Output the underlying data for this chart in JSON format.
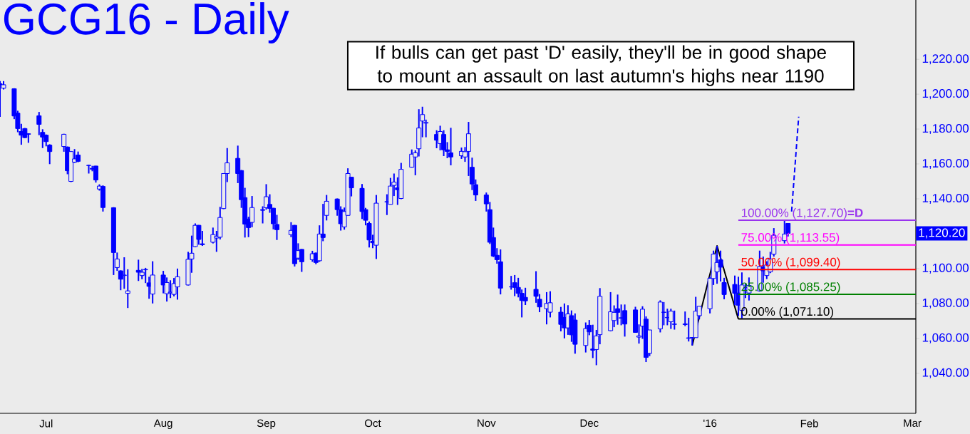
{
  "chart_data": {
    "type": "candlestick",
    "title": "GCG16 - Daily",
    "color": "#0000ff",
    "x": [
      "2015-06-18",
      "2015-06-19",
      "2015-06-22",
      "2015-06-23",
      "2015-06-24",
      "2015-06-25",
      "2015-06-26",
      "2015-06-29",
      "2015-06-30",
      "2015-07-01",
      "2015-07-02",
      "2015-07-06",
      "2015-07-07",
      "2015-07-08",
      "2015-07-09",
      "2015-07-10",
      "2015-07-13",
      "2015-07-14",
      "2015-07-15",
      "2015-07-16",
      "2015-07-17",
      "2015-07-20",
      "2015-07-21",
      "2015-07-22",
      "2015-07-23",
      "2015-07-24",
      "2015-07-27",
      "2015-07-28",
      "2015-07-29",
      "2015-07-30",
      "2015-07-31",
      "2015-08-03",
      "2015-08-04",
      "2015-08-05",
      "2015-08-06",
      "2015-08-07",
      "2015-08-10",
      "2015-08-11",
      "2015-08-12",
      "2015-08-13",
      "2015-08-14",
      "2015-08-17",
      "2015-08-18",
      "2015-08-19",
      "2015-08-20",
      "2015-08-21",
      "2015-08-24",
      "2015-08-25",
      "2015-08-26",
      "2015-08-27",
      "2015-08-28",
      "2015-08-31",
      "2015-09-01",
      "2015-09-02",
      "2015-09-03",
      "2015-09-04",
      "2015-09-08",
      "2015-09-09",
      "2015-09-10",
      "2015-09-11",
      "2015-09-14",
      "2015-09-15",
      "2015-09-16",
      "2015-09-17",
      "2015-09-18",
      "2015-09-21",
      "2015-09-22",
      "2015-09-23",
      "2015-09-24",
      "2015-09-25",
      "2015-09-28",
      "2015-09-29",
      "2015-09-30",
      "2015-10-01",
      "2015-10-02",
      "2015-10-05",
      "2015-10-06",
      "2015-10-07",
      "2015-10-08",
      "2015-10-09",
      "2015-10-12",
      "2015-10-13",
      "2015-10-14",
      "2015-10-15",
      "2015-10-16",
      "2015-10-19",
      "2015-10-20",
      "2015-10-21",
      "2015-10-22",
      "2015-10-23",
      "2015-10-26",
      "2015-10-27",
      "2015-10-28",
      "2015-10-29",
      "2015-10-30",
      "2015-11-02",
      "2015-11-03",
      "2015-11-04",
      "2015-11-05",
      "2015-11-06",
      "2015-11-09",
      "2015-11-10",
      "2015-11-11",
      "2015-11-12",
      "2015-11-13",
      "2015-11-16",
      "2015-11-17",
      "2015-11-19",
      "2015-11-20",
      "2015-11-23",
      "2015-11-24",
      "2015-11-25",
      "2015-11-26",
      "2015-11-27",
      "2015-11-30",
      "2015-12-01",
      "2015-12-02",
      "2015-12-03",
      "2015-12-04",
      "2015-12-07",
      "2015-12-08",
      "2015-12-09",
      "2015-12-10",
      "2015-12-11",
      "2015-12-14",
      "2015-12-15",
      "2015-12-16",
      "2015-12-17",
      "2015-12-18",
      "2015-12-21",
      "2015-12-22",
      "2015-12-23",
      "2015-12-24",
      "2015-12-25",
      "2015-12-28",
      "2015-12-29",
      "2015-12-30",
      "2015-12-31",
      "2016-01-01",
      "2016-01-04",
      "2016-01-05",
      "2016-01-06",
      "2016-01-07",
      "2016-01-08",
      "2016-01-11",
      "2016-01-12",
      "2016-01-13",
      "2016-01-14",
      "2016-01-15",
      "2016-01-18",
      "2016-01-19",
      "2016-01-20",
      "2016-01-21",
      "2016-01-22",
      "2016-01-25",
      "2016-01-26"
    ],
    "ohlc": [
      [
        1206,
        1207.5,
        1187,
        1205.4
      ],
      [
        1203.4,
        1207.5,
        1202.7,
        1205.4
      ],
      [
        1203.1,
        1203.4,
        1185.7,
        1187.5
      ],
      [
        1189.1,
        1190.5,
        1178.2,
        1180.3
      ],
      [
        1178.6,
        1183,
        1171,
        1176.5
      ],
      [
        1180.3,
        1180.6,
        1174.8,
        1175.1
      ],
      [
        1177.3,
        1177.6,
        1172.1,
        1177
      ],
      [
        1187.6,
        1189.8,
        1176.5,
        1182.7
      ],
      [
        1178.1,
        1179.9,
        1169.1,
        1175.4
      ],
      [
        1176.5,
        1176.9,
        1170.1,
        1172.8
      ],
      [
        1170.8,
        1171.3,
        1159.9,
        1167.1
      ],
      [
        1170,
        1177.3,
        1167,
        1177
      ],
      [
        1169.7,
        1170,
        1154.1,
        1156.1
      ],
      [
        1150,
        1167.4,
        1149.6,
        1167.1
      ],
      [
        1161,
        1168.5,
        1160.6,
        1162.9
      ],
      [
        1165.1,
        1167.1,
        1161,
        1161.5
      ],
      [
        1159.1,
        1159.5,
        1154.5,
        1159.2
      ],
      [
        1157.5,
        1158.9,
        1155.8,
        1157
      ],
      [
        1158.8,
        1158.9,
        1149.3,
        1150.8
      ],
      [
        1145.6,
        1148.3,
        1144.7,
        1147.3
      ],
      [
        1147.1,
        1147.7,
        1132.7,
        1135
      ],
      [
        1134.9,
        1135.2,
        1096.3,
        1109.2
      ],
      [
        1100.6,
        1109.2,
        1098.7,
        1105.5
      ],
      [
        1098.7,
        1099,
        1087.6,
        1093.9
      ],
      [
        1096,
        1106.5,
        1088.4,
        1096.3
      ],
      [
        1085.8,
        1099.6,
        1077.4,
        1087.2
      ],
      [
        1099,
        1105.1,
        1092.9,
        1097.9
      ],
      [
        1096,
        1099.8,
        1093.9,
        1097.9
      ],
      [
        1099.3,
        1100.4,
        1091.7,
        1099.5
      ],
      [
        1091.8,
        1095.3,
        1082.7,
        1089.8
      ],
      [
        1085.4,
        1104.2,
        1080,
        1096.3
      ],
      [
        1096.3,
        1098.7,
        1085.8,
        1090.6
      ],
      [
        1085.6,
        1094.9,
        1081.1,
        1092
      ],
      [
        1086.1,
        1093.3,
        1083.1,
        1086.5
      ],
      [
        1085.2,
        1094.6,
        1084.1,
        1091.4
      ],
      [
        1089.5,
        1100,
        1082.2,
        1095.3
      ],
      [
        1090.6,
        1109.6,
        1090.3,
        1105.3
      ],
      [
        1105.5,
        1118.9,
        1097.6,
        1108.8
      ],
      [
        1112.6,
        1125.9,
        1112.3,
        1124.8
      ],
      [
        1124.8,
        1125,
        1113.7,
        1116.7
      ],
      [
        1114.2,
        1121.6,
        1113,
        1113.7
      ],
      [
        1115.1,
        1123.5,
        1114.4,
        1119.5
      ],
      [
        1117.5,
        1121.6,
        1109.6,
        1118.5
      ],
      [
        1118,
        1135.4,
        1116.7,
        1129.3
      ],
      [
        1134.4,
        1154.7,
        1134.1,
        1154.5
      ],
      [
        1154.5,
        1169.1,
        1149.6,
        1160.6
      ],
      [
        1163.2,
        1170.5,
        1149,
        1154.5
      ],
      [
        1156.2,
        1156.5,
        1134.8,
        1139.5
      ],
      [
        1140.7,
        1146.3,
        1117.8,
        1125.5
      ],
      [
        1128.4,
        1129.7,
        1118,
        1123.5
      ],
      [
        1126.5,
        1141.6,
        1123.7,
        1135
      ],
      [
        1133.8,
        1135.7,
        1125.9,
        1133.4
      ],
      [
        1134.9,
        1148.4,
        1133.8,
        1141.2
      ],
      [
        1136.8,
        1142.6,
        1132,
        1134.5
      ],
      [
        1134.6,
        1134.8,
        1122.5,
        1125.7
      ],
      [
        1125.3,
        1130.8,
        1116.4,
        1122.3
      ],
      [
        1119.4,
        1126.6,
        1118,
        1121.9
      ],
      [
        1124.8,
        1125,
        1101.2,
        1102.8
      ],
      [
        1106,
        1114.5,
        1105,
        1110.3
      ],
      [
        1111,
        1111.2,
        1098.1,
        1103.9
      ],
      [
        1105.1,
        1110.2,
        1103.9,
        1108.5
      ],
      [
        1108.9,
        1109.2,
        1102.5,
        1103.5
      ],
      [
        1104.5,
        1124.8,
        1103.9,
        1119.8
      ],
      [
        1119.8,
        1137.1,
        1115.7,
        1117.8
      ],
      [
        1130.5,
        1142.2,
        1127.6,
        1138.6
      ],
      [
        1139.9,
        1140.2,
        1130.3,
        1133.8
      ],
      [
        1133.8,
        1135.7,
        1121.8,
        1125.7
      ],
      [
        1123.9,
        1135,
        1122.3,
        1132.7
      ],
      [
        1130.5,
        1157.5,
        1130.3,
        1154.5
      ],
      [
        1152.4,
        1152.4,
        1141.4,
        1146.3
      ],
      [
        1146,
        1148.5,
        1128.4,
        1132.7
      ],
      [
        1133.8,
        1134.8,
        1124.8,
        1127.7
      ],
      [
        1125.9,
        1127,
        1112.1,
        1116.4
      ],
      [
        1115.7,
        1119.4,
        1111.7,
        1114.8
      ],
      [
        1113.4,
        1142.2,
        1105.5,
        1137.5
      ],
      [
        1138.2,
        1142.6,
        1130.7,
        1138.4
      ],
      [
        1136.8,
        1152,
        1136.8,
        1147.3
      ],
      [
        1147.7,
        1154.5,
        1141.6,
        1149.6
      ],
      [
        1146.3,
        1152.3,
        1136.5,
        1145.2
      ],
      [
        1140.2,
        1160.6,
        1139.8,
        1156.9
      ],
      [
        1158.1,
        1168.3,
        1157.9,
        1165.6
      ],
      [
        1164,
        1167.8,
        1153.5,
        1166.4
      ],
      [
        1168.7,
        1191.4,
        1164.3,
        1180.6
      ],
      [
        1184.6,
        1192.8,
        1175.3,
        1188.3
      ],
      [
        1183.4,
        1185.4,
        1175.3,
        1183.8
      ],
      [
        1176.9,
        1179.3,
        1169,
        1173.6
      ],
      [
        1171.7,
        1181.9,
        1167.8,
        1178.6
      ],
      [
        1176.9,
        1179.3,
        1164.5,
        1168.1
      ],
      [
        1168.1,
        1172.5,
        1163.3,
        1167.2
      ],
      [
        1166.4,
        1180.7,
        1159.2,
        1164
      ],
      [
        1164.7,
        1169.4,
        1162.9,
        1167.2
      ],
      [
        1164,
        1169.7,
        1161.2,
        1167
      ],
      [
        1167.2,
        1184.1,
        1153.1,
        1177.3
      ],
      [
        1158.1,
        1163.6,
        1145,
        1148.5
      ],
      [
        1148.1,
        1151.1,
        1138.8,
        1142.2
      ],
      [
        1142.2,
        1143.6,
        1132.7,
        1137.1
      ],
      [
        1133.8,
        1138.2,
        1114.1,
        1115.1
      ],
      [
        1117.8,
        1123.5,
        1106.6,
        1107.2
      ],
      [
        1107.6,
        1111.7,
        1102.8,
        1105.1
      ],
      [
        1103.9,
        1111,
        1085.2,
        1088.8
      ],
      [
        1089.5,
        1095.8,
        1087.9,
        1089.5
      ],
      [
        1091.9,
        1096.3,
        1084.2,
        1089.2
      ],
      [
        1089.2,
        1094.7,
        1083.5,
        1085.8
      ],
      [
        1085.8,
        1088,
        1072,
        1081.7
      ],
      [
        1083.5,
        1089,
        1079.1,
        1081.5
      ],
      [
        1088.1,
        1098.5,
        1080.4,
        1084.1
      ],
      [
        1082.4,
        1085.4,
        1075,
        1078
      ],
      [
        1077,
        1086.5,
        1068,
        1080
      ],
      [
        1075,
        1087,
        1072,
        1080.4
      ],
      [
        1075,
        1078,
        1064,
        1068
      ],
      [
        1072,
        1080,
        1060,
        1066
      ],
      [
        1066,
        1079,
        1062,
        1074
      ],
      [
        1073,
        1076,
        1058,
        1062
      ],
      [
        1070.5,
        1074.3,
        1051.2,
        1056.6
      ],
      [
        1055.9,
        1069.1,
        1051.9,
        1065.6
      ],
      [
        1067.5,
        1070.5,
        1061.8,
        1063.7
      ],
      [
        1053.9,
        1067.8,
        1048.7,
        1053.2
      ],
      [
        1053.6,
        1064.8,
        1044.6,
        1061.4
      ],
      [
        1062.1,
        1088.8,
        1056.6,
        1084.1
      ],
      [
        1064.4,
        1086.5,
        1064.1,
        1075.2
      ],
      [
        1070.2,
        1078.9,
        1066.4,
        1074.9
      ],
      [
        1077,
        1085.1,
        1067.8,
        1074.9
      ],
      [
        1071.8,
        1079.4,
        1067.5,
        1071.6
      ],
      [
        1075.9,
        1079.4,
        1061,
        1068.2
      ],
      [
        1076.3,
        1078.1,
        1063.4,
        1063.4
      ],
      [
        1060.7,
        1068,
        1057,
        1061.4
      ],
      [
        1067,
        1078.4,
        1059.7,
        1076.7
      ],
      [
        1071,
        1072.6,
        1046.4,
        1049.1
      ],
      [
        1051.4,
        1064.8,
        1049.8,
        1064.8
      ],
      [
        1065.4,
        1081.8,
        1063.4,
        1080.8
      ],
      [
        1075,
        1080.8,
        1067.5,
        1074.9
      ],
      [
        1071.8,
        1077,
        1067.5,
        1072
      ],
      [
        1069.5,
        1077,
        1065.4,
        1075.6
      ],
      [
        1068.2,
        1075.9,
        1065,
        1068
      ],
      [
        1068.3,
        1075.4,
        1067,
        1067.9
      ],
      [
        1060,
        1071.8,
        1058.2,
        1060.3
      ],
      [
        1060.4,
        1060.7,
        1055.9,
        1060.4
      ],
      [
        1060.4,
        1083.8,
        1060.4,
        1075.6
      ],
      [
        1073,
        1078.4,
        1070.9,
        1078.4
      ],
      [
        1077,
        1095.3,
        1074.3,
        1094.4
      ],
      [
        1094.3,
        1110.3,
        1090.6,
        1108.3
      ],
      [
        1098.1,
        1113,
        1091.3,
        1103.5
      ],
      [
        1105,
        1110.3,
        1092.6,
        1100.8
      ],
      [
        1092,
        1094.7,
        1082.4,
        1085.1
      ],
      [
        1090.9,
        1096,
        1079,
        1085.8
      ],
      [
        1086,
        1095.3,
        1072.9,
        1079
      ],
      [
        1076,
        1097.8,
        1071.5,
        1090.6
      ],
      [
        1089.2,
        1091.3,
        1083.1,
        1089.2
      ],
      [
        1086,
        1094.9,
        1081.7,
        1090.3
      ],
      [
        1087.2,
        1110.3,
        1086.8,
        1101.2
      ],
      [
        1100.8,
        1106.9,
        1091.9,
        1098.7
      ],
      [
        1096,
        1104.2,
        1094,
        1102.1
      ],
      [
        1098.1,
        1109.6,
        1097.4,
        1105.5
      ],
      [
        1108.2,
        1123.2,
        1106.9,
        1119.1
      ],
      [
        1116,
        1127.7,
        1114.4,
        1119.8
      ],
      [
        1125.9,
        1125.9,
        1118.4,
        1120.2
      ]
    ],
    "series": [
      {
        "type": "line",
        "name": "100.00% (1,127.70)**=D**",
        "color": "#9933ee",
        "x": [
          "2016-01-12",
          "2016-03-02"
        ],
        "values": [
          1127.7,
          1127.7
        ]
      },
      {
        "type": "line",
        "name": "75.00% (1,113.55)",
        "color": "#ff00ff",
        "x": [
          "2016-01-12",
          "2016-03-02"
        ],
        "values": [
          1113.55,
          1113.55
        ]
      },
      {
        "type": "line",
        "name": "50.00% (1,099.40)",
        "color": "#ff0000",
        "x": [
          "2016-01-12",
          "2016-03-02"
        ],
        "values": [
          1099.4,
          1099.4
        ]
      },
      {
        "type": "line",
        "name": "25.00% (1,085.25)",
        "color": "#008000",
        "x": [
          "2016-01-12",
          "2016-03-02"
        ],
        "values": [
          1085.25,
          1085.25
        ]
      },
      {
        "type": "line",
        "name": "0.00% (1,071.10)",
        "color": "#000000",
        "x": [
          "2016-01-12",
          "2016-03-02"
        ],
        "values": [
          1071.1,
          1071.1
        ]
      },
      {
        "type": "line",
        "color": "#000000",
        "x": [
          "2015-12-30",
          "2016-01-06",
          "2016-01-12"
        ],
        "values": [
          1055.9,
          1113,
          1071.1
        ]
      },
      {
        "type": "line",
        "color": "#0000ff",
        "line_style": "dashed",
        "x": [
          "2016-01-27",
          "2016-01-29"
        ],
        "values": [
          1132.7,
          1187.1
        ]
      }
    ],
    "xlim": [
      "2015-06-18",
      "2016-03-02"
    ],
    "ylim": [
      1017,
      1254
    ],
    "xticks": [
      {
        "value": "2015-07-01",
        "label": "Jul"
      },
      {
        "value": "2015-08-03",
        "label": "Aug"
      },
      {
        "value": "2015-09-01",
        "label": "Sep"
      },
      {
        "value": "2015-10-01",
        "label": "Oct"
      },
      {
        "value": "2015-11-02",
        "label": "Nov"
      },
      {
        "value": "2015-12-01",
        "label": "Dec"
      },
      {
        "value": "2016-01-04",
        "label": "'16"
      },
      {
        "value": "2016-02-01",
        "label": "Feb"
      },
      {
        "value": "2016-03-01",
        "label": "Mar"
      }
    ],
    "yticks": [
      {
        "value": 1040,
        "label": "1,040.00"
      },
      {
        "value": 1060,
        "label": "1,060.00"
      },
      {
        "value": 1080,
        "label": "1,080.00"
      },
      {
        "value": 1100,
        "label": "1,100.00"
      },
      {
        "value": 1140,
        "label": "1,140.00"
      },
      {
        "value": 1160,
        "label": "1,160.00"
      },
      {
        "value": 1180,
        "label": "1,180.00"
      },
      {
        "value": 1200,
        "label": "1,200.00"
      },
      {
        "value": 1220,
        "label": "1,220.00"
      }
    ],
    "annotations": [
      "If bulls can get past 'D' easily, they'll be in good shape to mount an assault on last autumn's highs near 1190",
      "1,120.20"
    ]
  }
}
